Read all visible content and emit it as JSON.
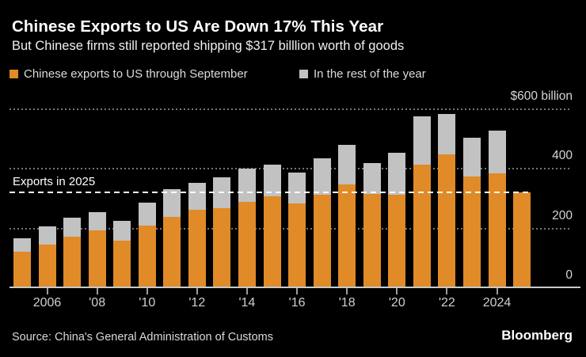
{
  "header": {
    "title": "Chinese Exports to US Are Down 17% This Year",
    "subtitle": "But Chinese firms still reported shipping $317 billlion worth of goods"
  },
  "legend": {
    "items": [
      {
        "label": "Chinese exports to US through September",
        "color": "#e08a28"
      },
      {
        "label": "In the rest of the year",
        "color": "#c2c2c2"
      }
    ]
  },
  "footer": {
    "source": "Source: China's General Administration of Customs",
    "brand": "Bloomberg"
  },
  "colors": {
    "background": "#000000",
    "orange": "#e08a28",
    "gray_bar": "#c2c2c2",
    "grid_dots": "#757575",
    "ref_line": "#ffffff",
    "axis_text": "#cfcfcf"
  },
  "chart_data": {
    "type": "bar",
    "stacked": true,
    "title": "Chinese Exports to US Are Down 17% This Year",
    "subtitle": "But Chinese firms still reported shipping $317 billlion worth of goods",
    "unit": "USD billion",
    "x": [
      2005,
      2006,
      2007,
      2008,
      2009,
      2010,
      2011,
      2012,
      2013,
      2014,
      2015,
      2016,
      2017,
      2018,
      2019,
      2020,
      2021,
      2022,
      2023,
      2024,
      2025
    ],
    "series": [
      {
        "name": "Chinese exports to US through September",
        "color": "#e08a28",
        "values": [
          118,
          144,
          170,
          190,
          156,
          208,
          237,
          260,
          266,
          286,
          305,
          280,
          311,
          345,
          314,
          311,
          410,
          445,
          370,
          382,
          317
        ]
      },
      {
        "name": "In the rest of the year",
        "color": "#c2c2c2",
        "values": [
          47,
          59,
          64,
          62,
          66,
          77,
          91,
          91,
          103,
          111,
          105,
          105,
          121,
          133,
          103,
          140,
          163,
          135,
          130,
          143,
          0
        ]
      }
    ],
    "ylim": [
      0,
      600
    ],
    "yticks": [
      {
        "value": 0,
        "label": "0"
      },
      {
        "value": 200,
        "label": "200"
      },
      {
        "value": 400,
        "label": "400"
      },
      {
        "value": 600,
        "label": "$600 billion"
      }
    ],
    "xticks": [
      {
        "year": 2006,
        "label": "2006"
      },
      {
        "year": 2008,
        "label": "'08"
      },
      {
        "year": 2010,
        "label": "'10"
      },
      {
        "year": 2012,
        "label": "'12"
      },
      {
        "year": 2014,
        "label": "'14"
      },
      {
        "year": 2016,
        "label": "'16"
      },
      {
        "year": 2018,
        "label": "'18"
      },
      {
        "year": 2020,
        "label": "'20"
      },
      {
        "year": 2022,
        "label": "'22"
      },
      {
        "year": 2024,
        "label": "2024"
      }
    ],
    "ref_line": {
      "value": 317,
      "label": "Exports in 2025"
    },
    "grid": "horizontal-dotted",
    "legend_position": "top-left"
  }
}
